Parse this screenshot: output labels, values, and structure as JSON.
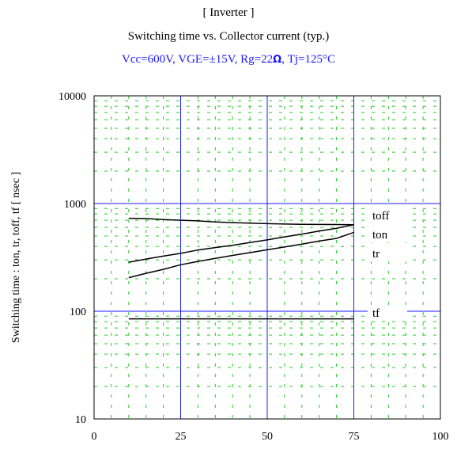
{
  "header": {
    "line1": "[ Inverter ]",
    "line2": "Switching time  vs.  Collector current  (typ.)",
    "line3_pre": "Vcc=600V, VGE=±15V, Rg=22",
    "line3_omega": "Ω",
    "line3_post": ", Tj=125°C"
  },
  "colors": {
    "major_grid": "#1a1aff",
    "minor_grid": "#22cc22",
    "curve": "#000000",
    "frame": "#000000"
  },
  "chart_data": {
    "type": "line",
    "xlabel": "",
    "ylabel": "Switching time  :  ton, tr, toff, tf  [ nsec ]",
    "xlim": [
      0,
      100
    ],
    "ylim": [
      10,
      10000
    ],
    "yscale": "log",
    "xticks": [
      "0",
      "25",
      "50",
      "75",
      "100"
    ],
    "yticks": [
      "10",
      "100",
      "1000",
      "10000"
    ],
    "grid": true,
    "series": [
      {
        "name": "toff",
        "x": [
          10,
          15,
          20,
          25,
          30,
          35,
          40,
          45,
          50,
          55,
          60,
          65,
          70,
          75
        ],
        "y": [
          730,
          725,
          710,
          700,
          690,
          675,
          665,
          658,
          650,
          645,
          642,
          640,
          638,
          636
        ]
      },
      {
        "name": "ton",
        "x": [
          10,
          15,
          20,
          25,
          30,
          35,
          40,
          45,
          50,
          55,
          60,
          65,
          70,
          75
        ],
        "y": [
          285,
          305,
          325,
          345,
          370,
          390,
          410,
          435,
          460,
          490,
          520,
          555,
          590,
          635
        ]
      },
      {
        "name": "tr",
        "x": [
          10,
          15,
          20,
          25,
          30,
          35,
          40,
          45,
          50,
          55,
          60,
          65,
          70,
          75
        ],
        "y": [
          205,
          225,
          245,
          270,
          290,
          310,
          330,
          350,
          372,
          395,
          420,
          448,
          475,
          540
        ]
      },
      {
        "name": "tf",
        "x": [
          10,
          20,
          30,
          40,
          50,
          60,
          70,
          75
        ],
        "y": [
          85,
          85,
          85,
          85,
          85,
          85,
          85,
          85
        ]
      }
    ]
  }
}
